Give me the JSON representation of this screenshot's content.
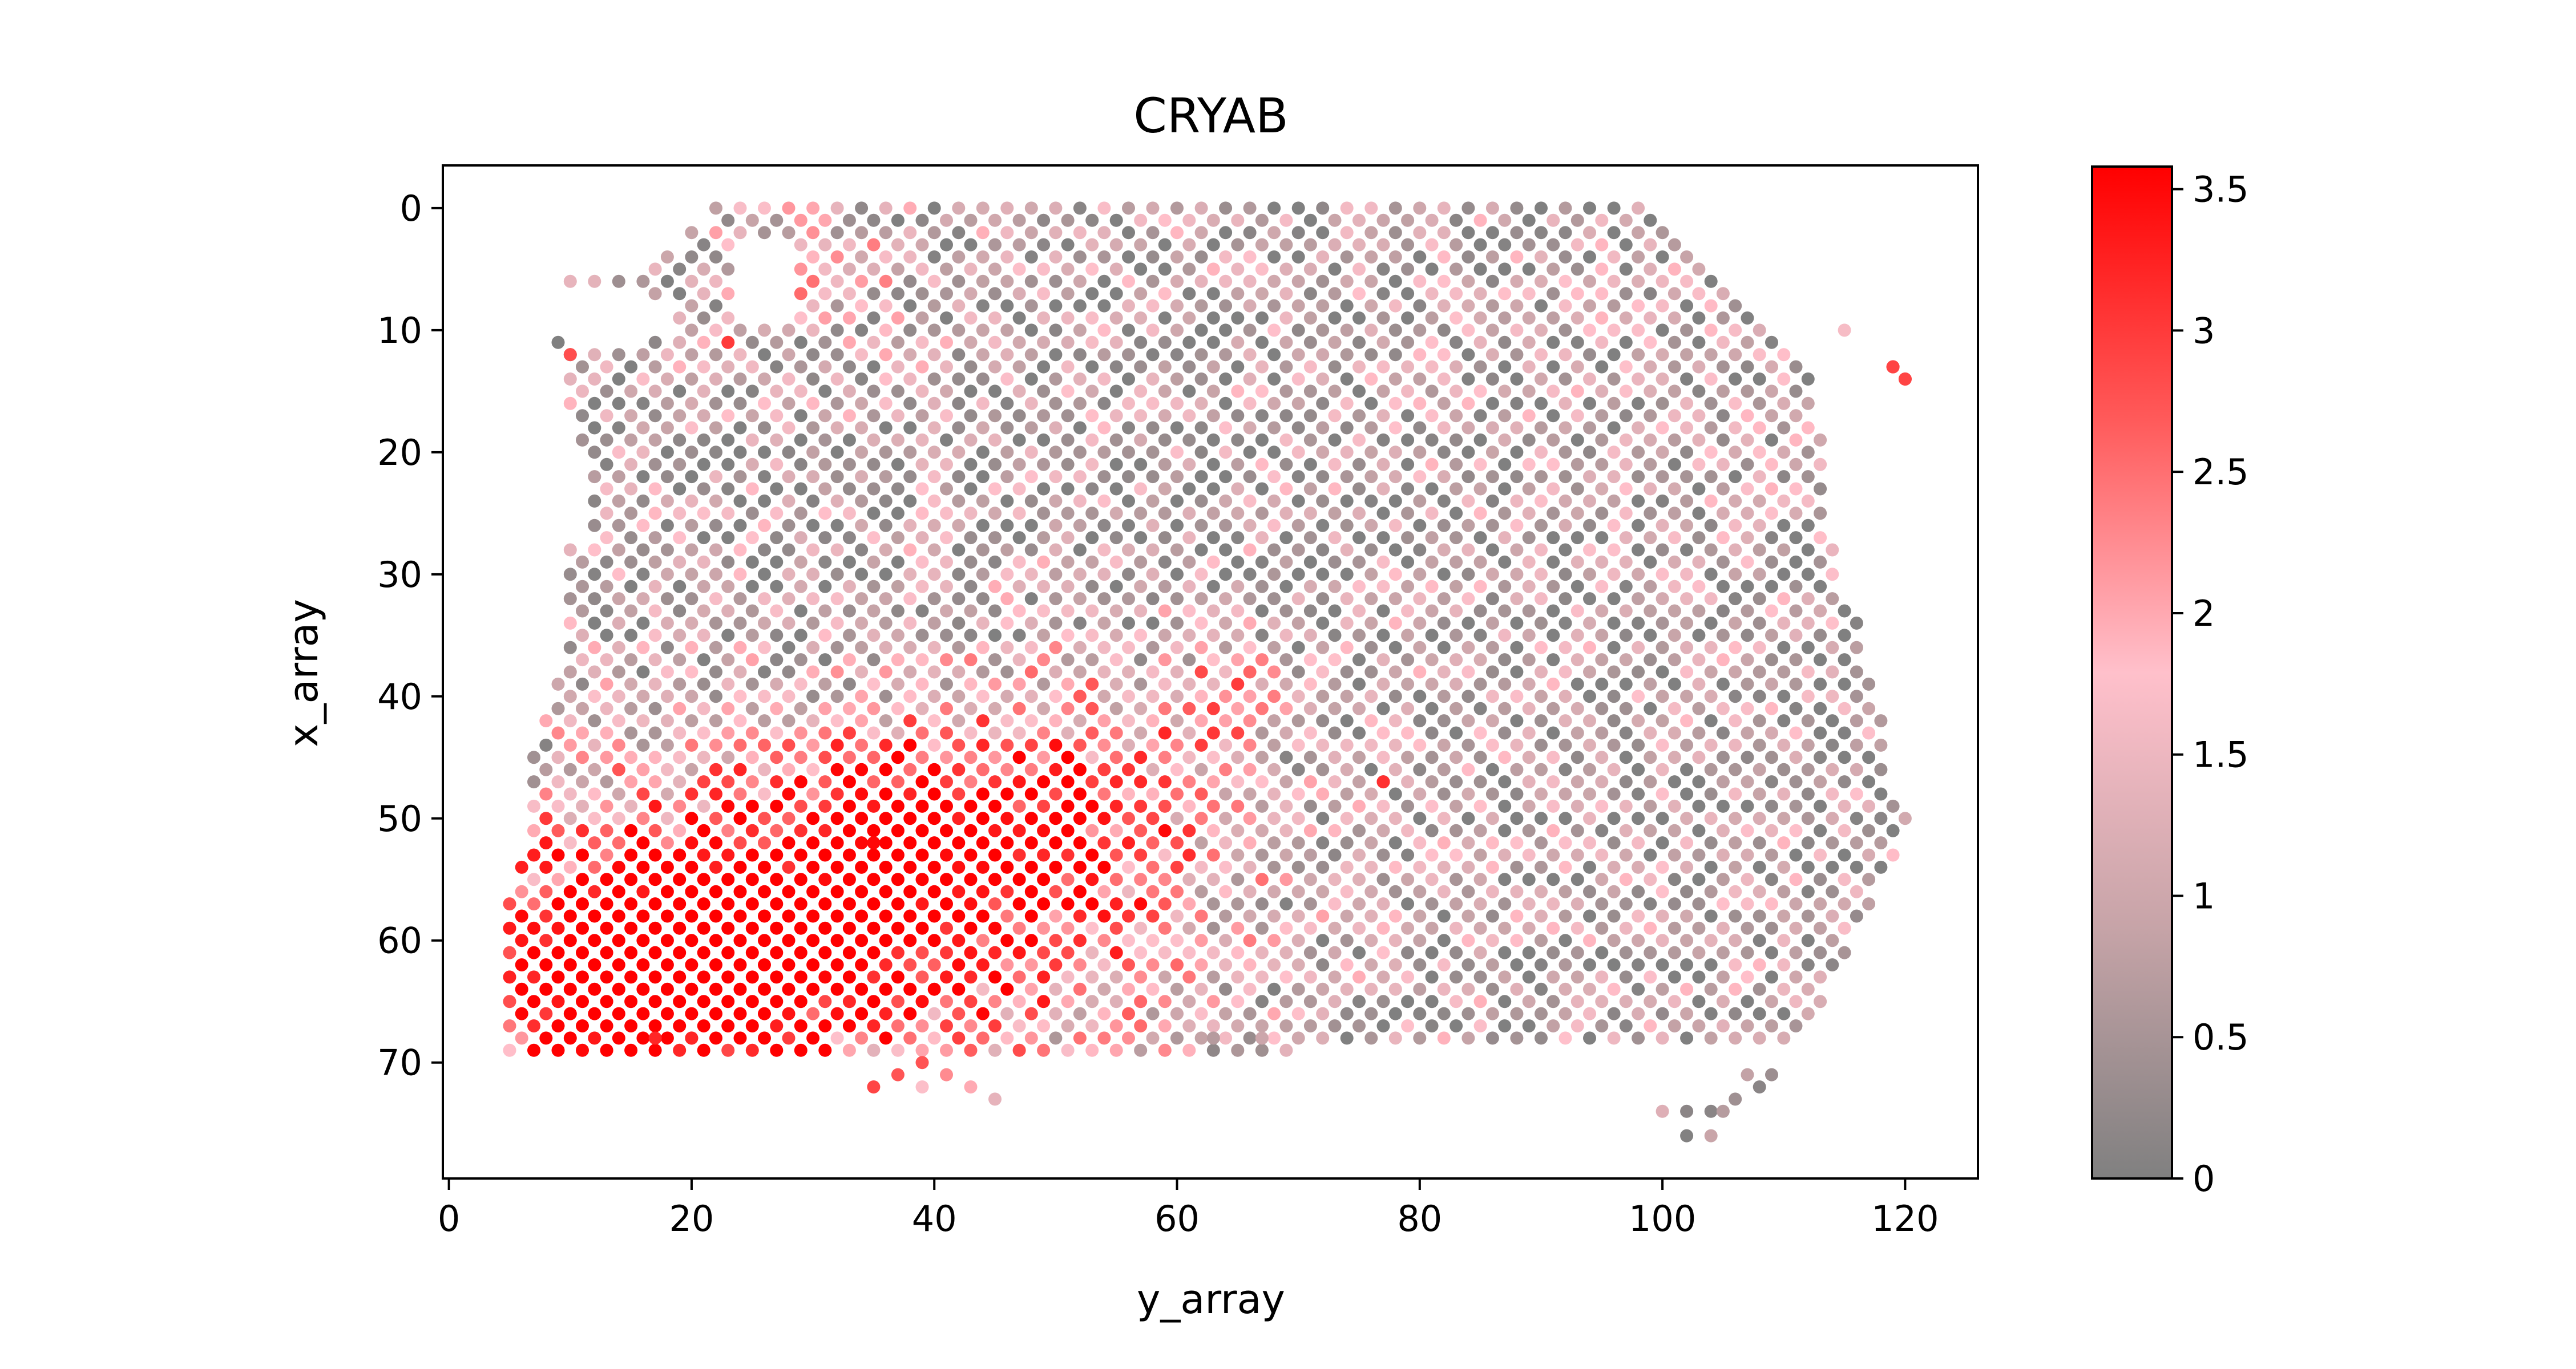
{
  "chart_data": {
    "type": "scatter",
    "title": "CRYAB",
    "xlabel": "y_array",
    "ylabel": "x_array",
    "xlim": [
      -0.5,
      126
    ],
    "ylim": [
      79.5,
      -3.5
    ],
    "y_inverted": true,
    "xticks": [
      0,
      20,
      40,
      60,
      80,
      100,
      120
    ],
    "yticks": [
      0,
      10,
      20,
      30,
      40,
      50,
      60,
      70
    ],
    "grid": false,
    "colorbar": {
      "min": 0,
      "max": 3.58,
      "ticks": [
        0,
        0.5,
        1,
        1.5,
        2,
        2.5,
        3,
        3.5
      ],
      "tick_labels": [
        "0",
        "0.5",
        "1",
        "1.5",
        "2",
        "2.5",
        "3",
        "3.5"
      ],
      "colors": [
        "#808080",
        "#c7a4a8",
        "#ffc0cb",
        "#ff5a5a",
        "#ff0000"
      ]
    },
    "tissue_region": {
      "rows": [
        [
          0,
          22,
          99
        ],
        [
          2,
          20,
          101
        ],
        [
          4,
          17,
          103
        ],
        [
          6,
          10,
          105
        ],
        [
          8,
          9,
          107
        ],
        [
          10,
          8,
          109
        ],
        [
          12,
          10,
          111
        ],
        [
          14,
          10,
          112
        ],
        [
          16,
          10,
          112
        ],
        [
          18,
          11,
          113
        ],
        [
          20,
          12,
          113
        ],
        [
          22,
          12,
          113
        ],
        [
          24,
          12,
          113
        ],
        [
          26,
          12,
          113
        ],
        [
          28,
          10,
          114
        ],
        [
          30,
          10,
          114
        ],
        [
          32,
          10,
          115
        ],
        [
          34,
          10,
          116
        ],
        [
          36,
          10,
          116
        ],
        [
          38,
          9,
          117
        ],
        [
          40,
          9,
          117
        ],
        [
          42,
          8,
          118
        ],
        [
          44,
          7,
          118
        ],
        [
          46,
          7,
          118
        ],
        [
          48,
          7,
          119
        ],
        [
          50,
          7,
          120
        ],
        [
          52,
          7,
          119
        ],
        [
          54,
          6,
          118
        ],
        [
          56,
          5,
          117
        ],
        [
          58,
          5,
          116
        ],
        [
          60,
          5,
          115
        ],
        [
          62,
          5,
          114
        ],
        [
          64,
          5,
          113
        ],
        [
          66,
          5,
          112
        ],
        [
          68,
          5,
          110
        ],
        [
          69,
          5,
          69
        ]
      ],
      "extra_spots": [
        [
          37,
          71
        ],
        [
          39,
          72
        ],
        [
          41,
          71
        ],
        [
          43,
          72
        ],
        [
          45,
          73
        ],
        [
          39,
          70
        ],
        [
          35,
          72
        ],
        [
          102,
          74
        ],
        [
          104,
          74
        ],
        [
          102,
          76
        ],
        [
          104,
          76
        ],
        [
          100,
          74
        ],
        [
          106,
          73
        ],
        [
          108,
          72
        ],
        [
          107,
          71
        ],
        [
          109,
          71
        ],
        [
          105,
          74
        ],
        [
          115,
          10
        ],
        [
          119,
          13
        ],
        [
          120,
          14
        ],
        [
          65,
          69
        ],
        [
          63,
          68
        ],
        [
          67,
          68
        ]
      ],
      "holes": [
        {
          "y": 13,
          "x": 9,
          "ry": 6,
          "rx": 2.4
        },
        {
          "y": 26,
          "x": 6,
          "ry": 2.5,
          "rx": 3.5
        }
      ]
    },
    "hotspots": [
      {
        "y": 30,
        "x": 58,
        "amplitude": 3.2,
        "sy": 18,
        "sx": 9
      },
      {
        "y": 15,
        "x": 64,
        "amplitude": 3.2,
        "sy": 9,
        "sx": 6
      },
      {
        "y": 37,
        "x": 51,
        "amplitude": 1.2,
        "sy": 5,
        "sx": 4
      },
      {
        "y": 50,
        "x": 48,
        "amplitude": 1.6,
        "sy": 10,
        "sx": 7
      },
      {
        "y": 64,
        "x": 40,
        "amplitude": 1.0,
        "sy": 4,
        "sx": 3
      },
      {
        "y": 30,
        "x": 5,
        "amplitude": 0.8,
        "sy": 6,
        "sx": 5
      },
      {
        "y": 115,
        "x": 10,
        "amplitude": 1.4,
        "sy": 3,
        "sx": 2
      },
      {
        "y": 119,
        "x": 13,
        "amplitude": 2.6,
        "sy": 2,
        "sx": 2
      }
    ],
    "base_level": 0.75,
    "noise_level": 1.15,
    "notable_points": [
      {
        "y": 77,
        "x": 47,
        "value": 3.1
      },
      {
        "y": 10,
        "x": 12,
        "value": 2.8
      },
      {
        "y": 23,
        "x": 11,
        "value": 3.0
      },
      {
        "y": 120,
        "x": 14,
        "value": 2.9
      },
      {
        "y": 119,
        "x": 13,
        "value": 2.9
      },
      {
        "y": 20,
        "x": 68,
        "value": 3.2
      },
      {
        "y": 17,
        "x": 68,
        "value": 3.2
      },
      {
        "y": 35,
        "x": 52,
        "value": 3.5
      }
    ]
  }
}
